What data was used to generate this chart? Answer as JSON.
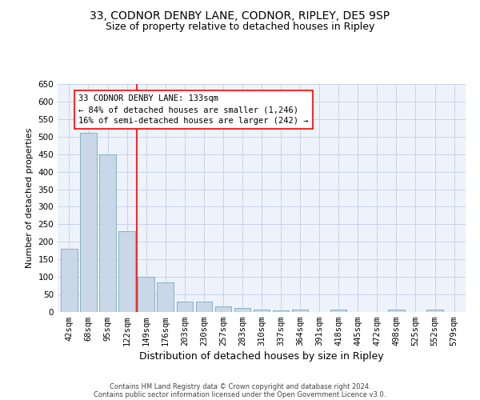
{
  "title1": "33, CODNOR DENBY LANE, CODNOR, RIPLEY, DE5 9SP",
  "title2": "Size of property relative to detached houses in Ripley",
  "xlabel": "Distribution of detached houses by size in Ripley",
  "ylabel": "Number of detached properties",
  "categories": [
    "42sqm",
    "68sqm",
    "95sqm",
    "122sqm",
    "149sqm",
    "176sqm",
    "203sqm",
    "230sqm",
    "257sqm",
    "283sqm",
    "310sqm",
    "337sqm",
    "364sqm",
    "391sqm",
    "418sqm",
    "445sqm",
    "472sqm",
    "498sqm",
    "525sqm",
    "552sqm",
    "579sqm"
  ],
  "values": [
    180,
    510,
    450,
    230,
    100,
    85,
    30,
    30,
    15,
    12,
    7,
    5,
    7,
    0,
    7,
    0,
    0,
    7,
    0,
    7,
    0
  ],
  "bar_color": "#c8d8e8",
  "bar_edge_color": "#7aaabb",
  "grid_color": "#c8d4e8",
  "background_color": "#eef2fb",
  "red_line_x": 3.5,
  "annotation_line1": "33 CODNOR DENBY LANE: 133sqm",
  "annotation_line2": "← 84% of detached houses are smaller (1,246)",
  "annotation_line3": "16% of semi-detached houses are larger (242) →",
  "annotation_box_color": "#ffffff",
  "annotation_text_color": "#000000",
  "ylim": [
    0,
    650
  ],
  "yticks": [
    0,
    50,
    100,
    150,
    200,
    250,
    300,
    350,
    400,
    450,
    500,
    550,
    600,
    650
  ],
  "footer1": "Contains HM Land Registry data © Crown copyright and database right 2024.",
  "footer2": "Contains public sector information licensed under the Open Government Licence v3.0.",
  "title1_fontsize": 10,
  "title2_fontsize": 9,
  "xlabel_fontsize": 9,
  "ylabel_fontsize": 8,
  "tick_fontsize": 7.5,
  "annotation_fontsize": 7.5,
  "footer_fontsize": 6
}
